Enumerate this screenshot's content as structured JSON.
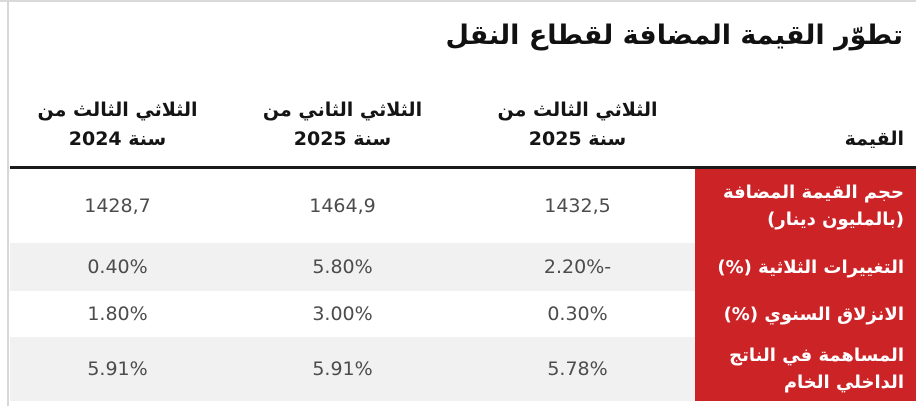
{
  "title": "تطوّر القيمة المضافة لقطاع النقل",
  "colors": {
    "accent_red": "#cc2327",
    "zebra_row": "#f1f1f1",
    "header_rule": "#1a1a1a",
    "value_text": "#4c4c4c"
  },
  "table": {
    "headers": {
      "value_col": "القيمة",
      "q3_2025": "الثلاثي الثالث من\nسنة 2025",
      "q2_2025": "الثلاثي الثاني من\nسنة 2025",
      "q3_2024": "الثلاثي الثالث من\nسنة 2024"
    },
    "rows": [
      {
        "label": "حجم القيمة المضافة\n(بالمليون دينار)",
        "q3_2025": "1432,5",
        "q2_2025": "1464,9",
        "q3_2024": "1428,7"
      },
      {
        "label": "التغييرات الثلاثية (%)",
        "q3_2025": "-2.20%",
        "q2_2025": "5.80%",
        "q3_2024": "0.40%"
      },
      {
        "label": "الانزلاق السنوي (%)",
        "q3_2025": "0.30%",
        "q2_2025": "3.00%",
        "q3_2024": "1.80%"
      },
      {
        "label": "المساهمة في الناتج\nالداخلي الخام",
        "q3_2025": "5.78%",
        "q2_2025": "5.91%",
        "q3_2024": "5.91%"
      }
    ]
  },
  "chart_data": {
    "type": "table",
    "title": "تطوّر القيمة المضافة لقطاع النقل",
    "direction": "rtl",
    "columns": [
      "القيمة",
      "الثلاثي الثالث من سنة 2025",
      "الثلاثي الثاني من سنة 2025",
      "الثلاثي الثالث من سنة 2024"
    ],
    "rows": [
      [
        "حجم القيمة المضافة (بالمليون دينار)",
        "1432,5",
        "1464,9",
        "1428,7"
      ],
      [
        "التغييرات الثلاثية (%)",
        "-2.20%",
        "5.80%",
        "0.40%"
      ],
      [
        "الانزلاق السنوي (%)",
        "0.30%",
        "3.00%",
        "1.80%"
      ],
      [
        "المساهمة في الناتج الداخلي الخام",
        "5.78%",
        "5.91%",
        "5.91%"
      ]
    ],
    "notes": "Quarterly evolution of transport-sector added value; value column labels on red background; zebra striping on rows 2 and 4; negative value renders as 2.20%- in RTL"
  }
}
